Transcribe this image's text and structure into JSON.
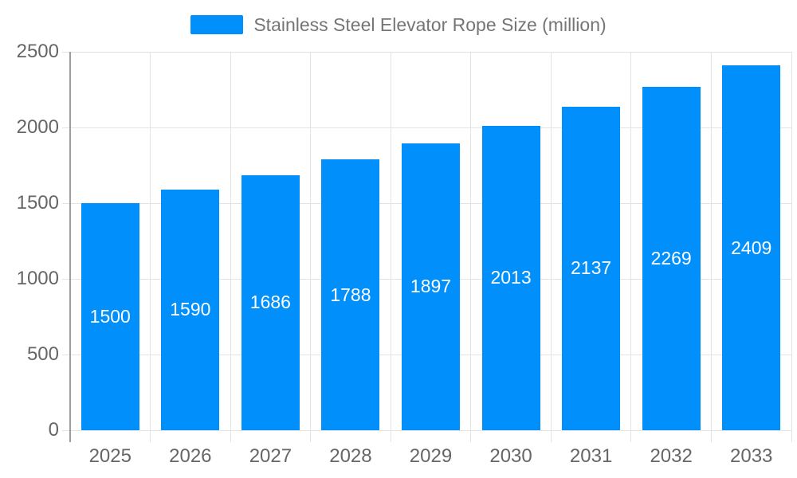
{
  "legend": {
    "series_label": "Stainless Steel Elevator Rope Size (million)"
  },
  "chart_data": {
    "type": "bar",
    "title": "Stainless Steel Elevator Rope Size (million)",
    "categories": [
      "2025",
      "2026",
      "2027",
      "2028",
      "2029",
      "2030",
      "2031",
      "2032",
      "2033"
    ],
    "values": [
      1500,
      1590,
      1686,
      1788,
      1897,
      2013,
      2137,
      2269,
      2409
    ],
    "xlabel": "",
    "ylabel": "",
    "ylim": [
      0,
      2500
    ],
    "yticks": [
      0,
      500,
      1000,
      1500,
      2000,
      2500
    ],
    "grid": true,
    "legend_position": "top",
    "value_labels": "inside-center",
    "colors": {
      "bar": "#008FFB",
      "grid": "#e3e3e3",
      "axis_line": "#9e9e9e",
      "axis_text": "#666666",
      "legend_text": "#757575",
      "value_label": "#ffffff",
      "background": "#ffffff"
    }
  }
}
